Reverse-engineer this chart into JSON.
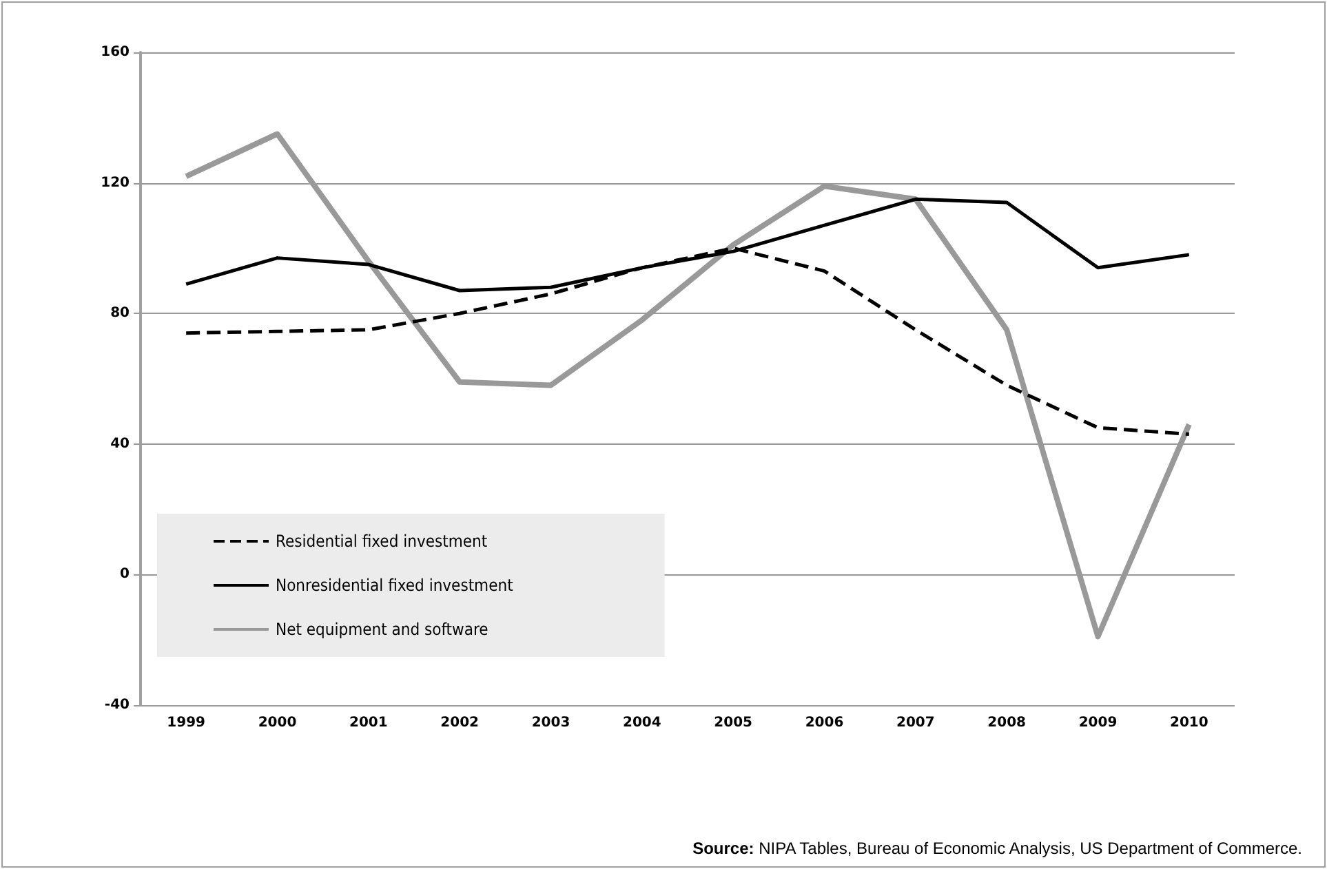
{
  "chart_data": {
    "type": "line",
    "categories": [
      "1999",
      "2000",
      "2001",
      "2002",
      "2003",
      "2004",
      "2005",
      "2006",
      "2007",
      "2008",
      "2009",
      "2010"
    ],
    "series": [
      {
        "name": "Residential fixed investment",
        "color": "#000000",
        "line_style": "dashed",
        "values": [
          74,
          74.5,
          75,
          80,
          86,
          94,
          100,
          93,
          75,
          58,
          45,
          43
        ]
      },
      {
        "name": "Nonresidential fixed investment",
        "color": "#000000",
        "line_style": "solid",
        "values": [
          89,
          97,
          95,
          87,
          88,
          94,
          99,
          107,
          115,
          114,
          94,
          98
        ]
      },
      {
        "name": "Net equipment and software",
        "color": "#999999",
        "line_style": "solid",
        "values": [
          122,
          135,
          96,
          59,
          58,
          78,
          101,
          119,
          115,
          75,
          -19,
          46
        ]
      }
    ],
    "ylim": [
      -40,
      160
    ],
    "yticks": [
      -40,
      0,
      40,
      80,
      120,
      160
    ],
    "grid": "y",
    "legend": "bottom left",
    "marker": "none",
    "annotations": [
      "Source: NIPA Tables, Bureau of Economic Analysis, US Department of Commerce."
    ]
  }
}
